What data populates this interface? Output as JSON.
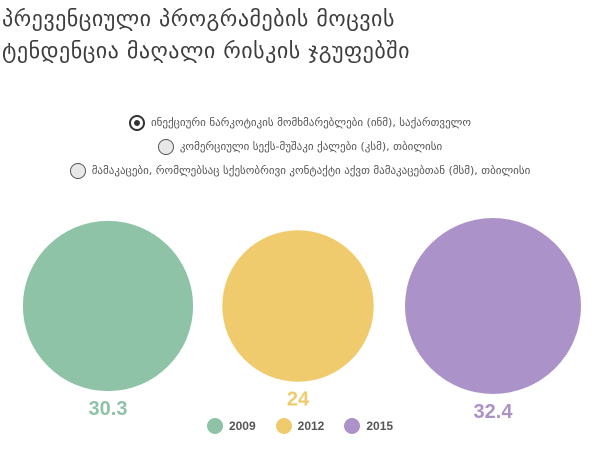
{
  "title": {
    "line1": "პრევენციული პროგრამების მოცვის",
    "line2": "ტენდენცია მაღალი რისკის ჯგუფებში"
  },
  "groups": [
    {
      "label": "ინექციური ნარკოტიკის მომხმარებლები (ინმ), საქართველო",
      "selected": true
    },
    {
      "label": "კომერციული სექს-მუშაკი ქალები (კსმ), თბილისი",
      "selected": false
    },
    {
      "label": "მამაკაცები, რომლებსაც სქესობრივი კონტაქტი აქვთ მამაკაცებთან (მსმ), თბილისი",
      "selected": false
    }
  ],
  "chart_data": {
    "type": "bubble",
    "categories": [
      "2009",
      "2012",
      "2015"
    ],
    "values": [
      30.3,
      24,
      32.4
    ],
    "value_labels": [
      "30.3",
      "24",
      "32.4"
    ],
    "colors": [
      "#8fc3a7",
      "#f0cb6e",
      "#ab93c9"
    ],
    "legend": [
      "2009",
      "2012",
      "2015"
    ],
    "legend_position": "bottom",
    "grid": false
  }
}
